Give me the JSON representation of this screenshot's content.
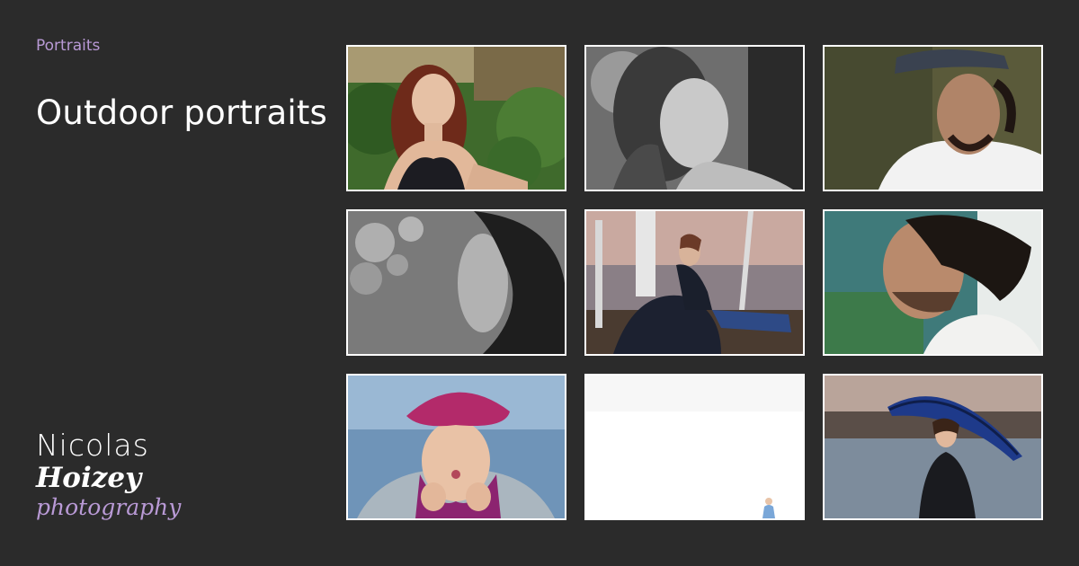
{
  "breadcrumb": "Portraits",
  "page_title": "Outdoor portraits",
  "logo": {
    "line1": "Nicolas",
    "line2": "Hoizey",
    "line3": "photography"
  },
  "colors": {
    "background": "#2b2b2b",
    "accent": "#b99ad6",
    "text": "#ffffff",
    "photo_border": "#ffffff"
  },
  "gallery": {
    "photos": [
      {
        "subject": "woman with red hair, green garden background"
      },
      {
        "subject": "black and white portrait of woman with freckles"
      },
      {
        "subject": "smiling man with cap and beard"
      },
      {
        "subject": "black and white profile of woman with windswept hair"
      },
      {
        "subject": "woman seated by birch trees with umbrella at dusk"
      },
      {
        "subject": "man in profile with beard, blue-green background"
      },
      {
        "subject": "girl in magenta beret blowing a kiss"
      },
      {
        "subject": "small child in a vast white snowy field"
      },
      {
        "subject": "woman holding blue umbrella by a lake"
      }
    ]
  }
}
